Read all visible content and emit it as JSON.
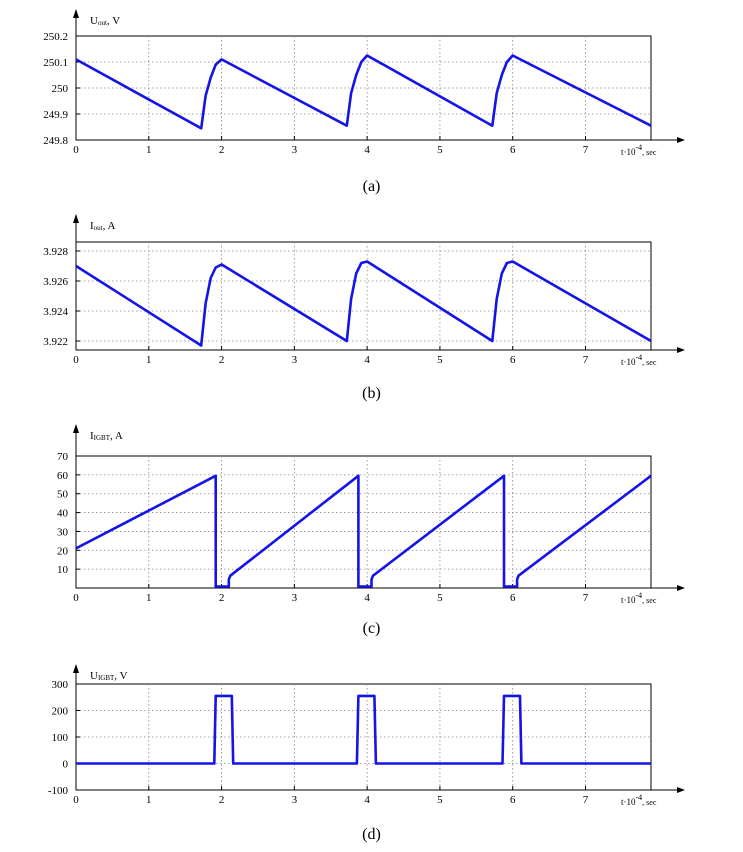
{
  "chart_data": [
    {
      "type": "line",
      "caption": "(a)",
      "ylabel": {
        "main": "U",
        "sub": "out",
        "unit": ", V"
      },
      "xlabel": {
        "prefix": "t·10",
        "exp": "-4",
        "suffix": ", sec"
      },
      "xlim": [
        0,
        7.9
      ],
      "ylim": [
        249.8,
        250.2
      ],
      "xticks": [
        0,
        1,
        2,
        3,
        4,
        5,
        6,
        7
      ],
      "yticks": [
        249.8,
        249.9,
        250,
        250.1,
        250.2
      ],
      "ytick_labels": [
        "249.8",
        "249.9",
        "250",
        "250.1",
        "250.2"
      ],
      "grid": true,
      "color": "#1414e6",
      "series": [
        {
          "x": [
            0,
            1.72,
            1.78,
            1.85,
            1.92,
            2.0,
            3.72,
            3.78,
            3.85,
            3.92,
            4.0,
            5.72,
            5.78,
            5.85,
            5.92,
            6.0,
            7.9
          ],
          "y": [
            250.11,
            249.845,
            249.97,
            250.04,
            250.09,
            250.11,
            249.855,
            249.98,
            250.05,
            250.1,
            250.125,
            249.855,
            249.98,
            250.05,
            250.1,
            250.125,
            249.855
          ]
        }
      ]
    },
    {
      "type": "line",
      "caption": "(b)",
      "ylabel": {
        "main": "I",
        "sub": "out",
        "unit": ", A"
      },
      "xlabel": {
        "prefix": "t·10",
        "exp": "-4",
        "suffix": ", sec"
      },
      "xlim": [
        0,
        7.9
      ],
      "ylim": [
        3.9214,
        3.9286
      ],
      "xticks": [
        0,
        1,
        2,
        3,
        4,
        5,
        6,
        7
      ],
      "yticks": [
        3.922,
        3.924,
        3.926,
        3.928
      ],
      "ytick_labels": [
        "3.922",
        "3.924",
        "3.926",
        "3.928"
      ],
      "grid": true,
      "color": "#1414e6",
      "series": [
        {
          "x": [
            0,
            1.72,
            1.78,
            1.85,
            1.92,
            2.0,
            3.72,
            3.78,
            3.85,
            3.92,
            4.0,
            5.72,
            5.78,
            5.85,
            5.92,
            6.0,
            7.9
          ],
          "y": [
            3.927,
            3.9217,
            3.9245,
            3.9262,
            3.9269,
            3.9271,
            3.922,
            3.9248,
            3.9265,
            3.9272,
            3.9273,
            3.922,
            3.9248,
            3.9265,
            3.9272,
            3.9273,
            3.922
          ]
        }
      ]
    },
    {
      "type": "line",
      "caption": "(c)",
      "ylabel": {
        "main": "I",
        "sub": "IGBT",
        "unit": ", A"
      },
      "xlabel": {
        "prefix": "t·10",
        "exp": "-4",
        "suffix": ", sec"
      },
      "xlim": [
        0,
        7.9
      ],
      "ylim": [
        0,
        70
      ],
      "xticks": [
        0,
        1,
        2,
        3,
        4,
        5,
        6,
        7
      ],
      "yticks": [
        10,
        20,
        30,
        40,
        50,
        60,
        70
      ],
      "ytick_labels": [
        "10",
        "20",
        "30",
        "40",
        "50",
        "60",
        "70"
      ],
      "grid": true,
      "color": "#1414e6",
      "series": [
        {
          "x": [
            0,
            1.92,
            1.92,
            2.1,
            2.1,
            2.12,
            3.88,
            3.88,
            4.06,
            4.06,
            4.08,
            5.88,
            5.88,
            6.06,
            6.06,
            6.08,
            7.9
          ],
          "y": [
            21,
            59.5,
            0.8,
            0.8,
            4.5,
            6.5,
            59.5,
            0.8,
            0.8,
            4.5,
            6.5,
            59.5,
            0.8,
            0.8,
            4.5,
            6.5,
            59.5
          ]
        }
      ]
    },
    {
      "type": "line",
      "caption": "(d)",
      "ylabel": {
        "main": "U",
        "sub": "IGBT",
        "unit": ", V"
      },
      "xlabel": {
        "prefix": "t·10",
        "exp": "-4",
        "suffix": ", sec"
      },
      "xlim": [
        0,
        7.9
      ],
      "ylim": [
        -100,
        300
      ],
      "xticks": [
        0,
        1,
        2,
        3,
        4,
        5,
        6,
        7
      ],
      "yticks": [
        -100,
        0,
        100,
        200,
        300
      ],
      "ytick_labels": [
        "-100",
        "0",
        "100",
        "200",
        "300"
      ],
      "grid": true,
      "color": "#1414e6",
      "series": [
        {
          "x": [
            0,
            1.9,
            1.92,
            2.14,
            2.16,
            3.86,
            3.88,
            4.1,
            4.12,
            5.86,
            5.88,
            6.1,
            6.12,
            7.9
          ],
          "y": [
            0,
            0,
            255,
            255,
            0,
            0,
            255,
            255,
            0,
            0,
            255,
            255,
            0,
            0
          ]
        }
      ]
    }
  ]
}
